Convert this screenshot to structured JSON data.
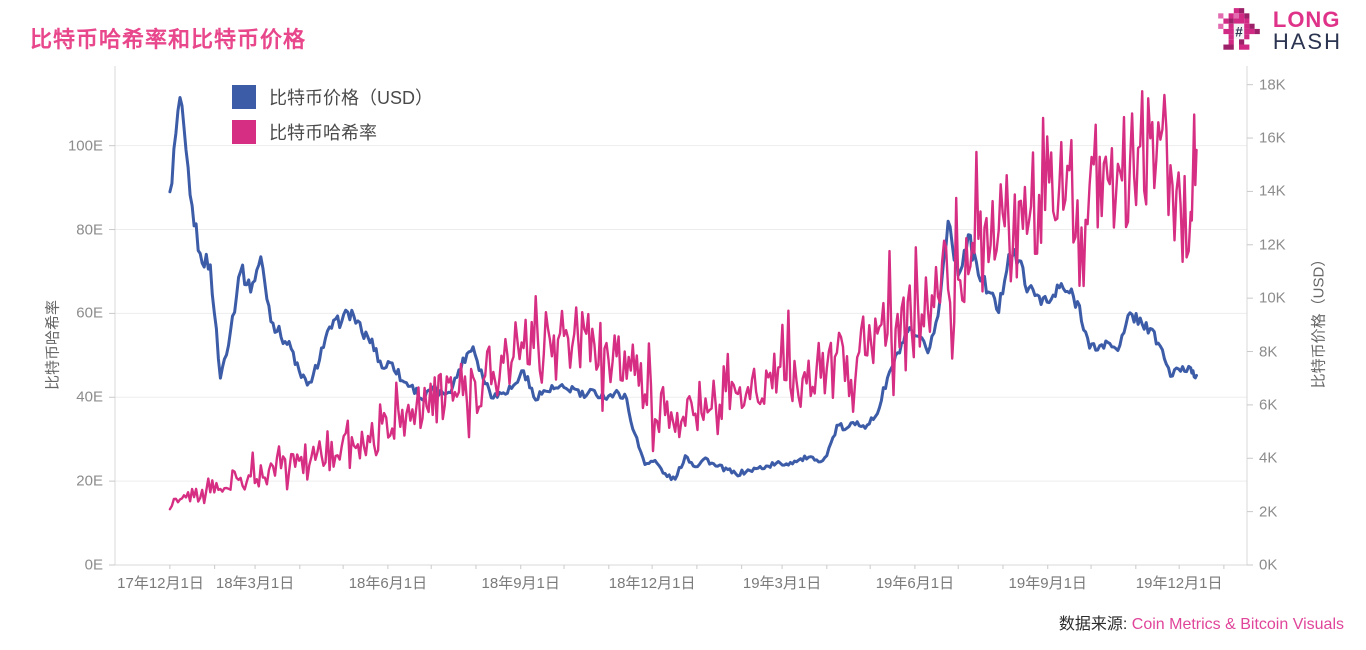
{
  "page": {
    "title": "比特币哈希率和比特币价格"
  },
  "logo": {
    "icon": "pixel-dino-hash-icon",
    "line1": "LONG",
    "line2": "HASH"
  },
  "footer": {
    "label": "数据来源:",
    "source": "Coin Metrics & Bitcoin Visuals"
  },
  "colors": {
    "title_pink": "#e8478c",
    "price_blue": "#3d5ca8",
    "hash_pink": "#d62e82",
    "grid": "#ededed",
    "axis_line": "#d9d9d9",
    "tick_mark": "#c9c9c9",
    "logo_pink": "#d02a85",
    "logo_pink_dark": "#9c2168",
    "logo_navy": "#2b3450",
    "footer_link_pink": "#e0459a"
  },
  "chart_data": {
    "type": "line",
    "title": "比特币哈希率和比特币价格",
    "legend_position": "top-left-inside",
    "grid": "horizontal-only",
    "x_axis": {
      "range": [
        "2017-11-24",
        "2020-01-17"
      ],
      "ticks": [
        {
          "date": "2017-12-01",
          "label": "17年12月1日"
        },
        {
          "date": "2018-03-01",
          "label": "18年3月1日"
        },
        {
          "date": "2018-06-01",
          "label": "18年6月1日"
        },
        {
          "date": "2018-09-01",
          "label": "18年9月1日"
        },
        {
          "date": "2018-12-01",
          "label": "18年12月1日"
        },
        {
          "date": "2019-03-01",
          "label": "19年3月1日"
        },
        {
          "date": "2019-06-01",
          "label": "19年6月1日"
        },
        {
          "date": "2019-09-01",
          "label": "19年9月1日"
        },
        {
          "date": "2019-12-01",
          "label": "19年12月1日"
        }
      ],
      "minor_ticks": "monthly"
    },
    "left_axis": {
      "title": "比特币哈希率",
      "unit": "EH/s",
      "tick_values": [
        0,
        20,
        40,
        60,
        80,
        100
      ],
      "tick_labels": [
        "0E",
        "20E",
        "40E",
        "60E",
        "80E",
        "100E"
      ],
      "ylim": [
        0,
        119
      ]
    },
    "right_axis": {
      "title": "比特币价格（USD）",
      "unit": "thousand USD",
      "tick_values": [
        0,
        2,
        4,
        6,
        8,
        10,
        12,
        14,
        16,
        18
      ],
      "tick_labels": [
        "0K",
        "2K",
        "4K",
        "6K",
        "8K",
        "10K",
        "12K",
        "14K",
        "16K",
        "18K"
      ],
      "ylim": [
        0,
        18.7
      ]
    },
    "dates": [
      "2018-01-01",
      "2018-01-08",
      "2018-01-15",
      "2018-01-22",
      "2018-01-29",
      "2018-02-05",
      "2018-02-12",
      "2018-02-19",
      "2018-02-26",
      "2018-03-05",
      "2018-03-12",
      "2018-03-19",
      "2018-03-26",
      "2018-04-02",
      "2018-04-09",
      "2018-04-16",
      "2018-04-23",
      "2018-04-30",
      "2018-05-07",
      "2018-05-14",
      "2018-05-21",
      "2018-05-28",
      "2018-06-04",
      "2018-06-11",
      "2018-06-18",
      "2018-06-25",
      "2018-07-02",
      "2018-07-09",
      "2018-07-16",
      "2018-07-23",
      "2018-07-30",
      "2018-08-06",
      "2018-08-13",
      "2018-08-20",
      "2018-08-27",
      "2018-09-03",
      "2018-09-10",
      "2018-09-17",
      "2018-09-24",
      "2018-10-01",
      "2018-10-08",
      "2018-10-15",
      "2018-10-22",
      "2018-10-29",
      "2018-11-05",
      "2018-11-12",
      "2018-11-19",
      "2018-11-26",
      "2018-12-03",
      "2018-12-10",
      "2018-12-17",
      "2018-12-24",
      "2018-12-31",
      "2019-01-07",
      "2019-01-14",
      "2019-01-21",
      "2019-01-28",
      "2019-02-04",
      "2019-02-11",
      "2019-02-18",
      "2019-02-25",
      "2019-03-04",
      "2019-03-11",
      "2019-03-18",
      "2019-03-25",
      "2019-04-01",
      "2019-04-08",
      "2019-04-15",
      "2019-04-22",
      "2019-04-29",
      "2019-05-06",
      "2019-05-13",
      "2019-05-20",
      "2019-05-27",
      "2019-06-03",
      "2019-06-10",
      "2019-06-17",
      "2019-06-24",
      "2019-07-01",
      "2019-07-08",
      "2019-07-15",
      "2019-07-22",
      "2019-07-29",
      "2019-08-05",
      "2019-08-12",
      "2019-08-19",
      "2019-08-26",
      "2019-09-02",
      "2019-09-09",
      "2019-09-16",
      "2019-09-23",
      "2019-09-30",
      "2019-10-07",
      "2019-10-14",
      "2019-10-21",
      "2019-10-28",
      "2019-11-04",
      "2019-11-11",
      "2019-11-18",
      "2019-11-25",
      "2019-12-02",
      "2019-12-09",
      "2019-12-13"
    ],
    "series": [
      {
        "name": "比特币价格（USD）",
        "axis": "right",
        "color": "#3d5ca8",
        "unit": "K USD",
        "values": [
          13.9,
          17.5,
          13.8,
          11.6,
          11.2,
          7.0,
          8.8,
          11.1,
          10.3,
          11.5,
          9.2,
          8.6,
          8.1,
          7.0,
          6.8,
          8.1,
          8.9,
          9.2,
          9.5,
          8.7,
          8.4,
          7.4,
          7.6,
          6.9,
          6.7,
          6.2,
          6.6,
          6.4,
          6.7,
          7.7,
          8.2,
          7.0,
          6.3,
          6.5,
          6.7,
          7.3,
          6.3,
          6.5,
          6.6,
          6.6,
          6.6,
          6.3,
          6.5,
          6.3,
          6.4,
          6.4,
          4.9,
          3.8,
          3.9,
          3.4,
          3.2,
          4.1,
          3.7,
          4.0,
          3.7,
          3.6,
          3.4,
          3.5,
          3.6,
          3.7,
          3.8,
          3.8,
          3.9,
          4.0,
          3.9,
          4.1,
          5.2,
          5.1,
          5.4,
          5.2,
          5.7,
          7.0,
          7.9,
          8.7,
          8.5,
          8.0,
          9.3,
          13.0,
          10.9,
          12.3,
          10.9,
          10.3,
          9.5,
          11.7,
          11.4,
          10.3,
          10.1,
          9.8,
          10.4,
          10.2,
          9.7,
          8.1,
          8.2,
          8.3,
          8.2,
          9.4,
          9.2,
          8.8,
          8.2,
          7.1,
          7.3,
          7.4,
          7.1
        ]
      },
      {
        "name": "比特币哈希率",
        "axis": "left",
        "color": "#d62e82",
        "unit": "EH/s",
        "values": [
          14,
          15,
          16,
          17,
          18,
          18.5,
          19.5,
          20.5,
          21.5,
          22.5,
          23.5,
          24.5,
          25.5,
          26,
          26.5,
          27.5,
          28,
          29,
          30,
          31,
          32,
          33,
          34.5,
          35.5,
          36.5,
          37,
          38,
          39.5,
          40.5,
          42,
          43,
          44.5,
          46,
          47,
          48.5,
          50,
          51,
          52,
          53,
          53.5,
          53,
          54,
          53.5,
          53,
          52,
          50.5,
          46,
          41.5,
          37.5,
          34,
          33,
          35,
          37.5,
          38.5,
          39.5,
          40.5,
          41,
          41.5,
          42,
          42.5,
          43.5,
          44,
          44.5,
          45.5,
          46,
          47,
          48.5,
          50,
          51.5,
          52.5,
          54,
          56,
          58,
          59.5,
          61,
          63,
          65.5,
          67.5,
          70,
          72.5,
          74.5,
          76.5,
          78.5,
          80.5,
          83,
          85.5,
          87.5,
          90,
          93,
          95,
          70,
          91,
          93.5,
          95.5,
          97.5,
          96.5,
          99,
          103,
          107,
          95,
          84,
          83,
          99
        ]
      }
    ],
    "render": {
      "upsample": 5,
      "noise_frac": [
        0.028,
        0.17
      ],
      "spike_frac": [
        0,
        0.22
      ],
      "clamp_max": [
        18.2,
        113
      ]
    }
  }
}
